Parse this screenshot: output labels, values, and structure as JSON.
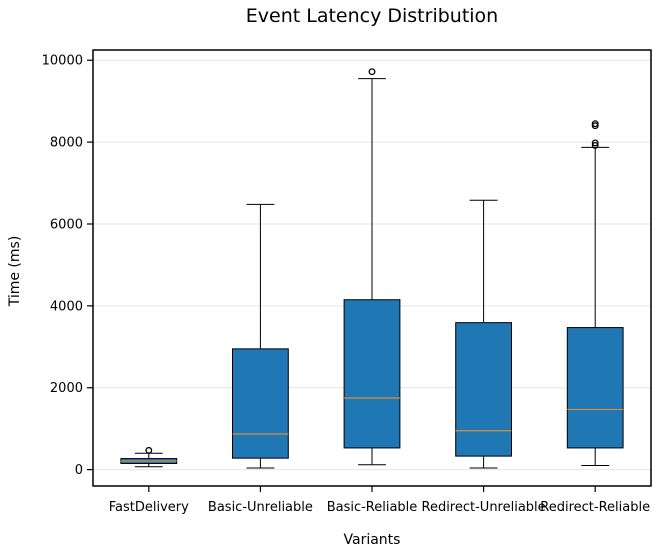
{
  "chart_data": {
    "type": "box",
    "title": "Event Latency Distribution",
    "xlabel": "Variants",
    "ylabel": "Time (ms)",
    "ylim": [
      -400,
      10250
    ],
    "yticks": [
      0,
      2000,
      4000,
      6000,
      8000,
      10000
    ],
    "grid": "horizontal",
    "legend": "none",
    "box_color": "#1f77b4",
    "median_color": "#d98c3a",
    "categories": [
      "FastDelivery",
      "Basic-Unreliable",
      "Basic-Reliable",
      "Redirect-Unreliable",
      "Redirect-Reliable"
    ],
    "boxes": [
      {
        "category": "FastDelivery",
        "whisker_low": 70,
        "q1": 150,
        "median": 210,
        "q3": 270,
        "whisker_high": 400,
        "outliers": [
          470
        ]
      },
      {
        "category": "Basic-Unreliable",
        "whisker_low": 40,
        "q1": 280,
        "median": 870,
        "q3": 2950,
        "whisker_high": 6480,
        "outliers": []
      },
      {
        "category": "Basic-Reliable",
        "whisker_low": 120,
        "q1": 530,
        "median": 1750,
        "q3": 4150,
        "whisker_high": 9550,
        "outliers": [
          9720
        ]
      },
      {
        "category": "Redirect-Unreliable",
        "whisker_low": 40,
        "q1": 330,
        "median": 950,
        "q3": 3590,
        "whisker_high": 6580,
        "outliers": []
      },
      {
        "category": "Redirect-Reliable",
        "whisker_low": 100,
        "q1": 530,
        "median": 1470,
        "q3": 3470,
        "whisker_high": 7870,
        "outliers": [
          7920,
          7980,
          8400,
          8450
        ]
      }
    ]
  }
}
